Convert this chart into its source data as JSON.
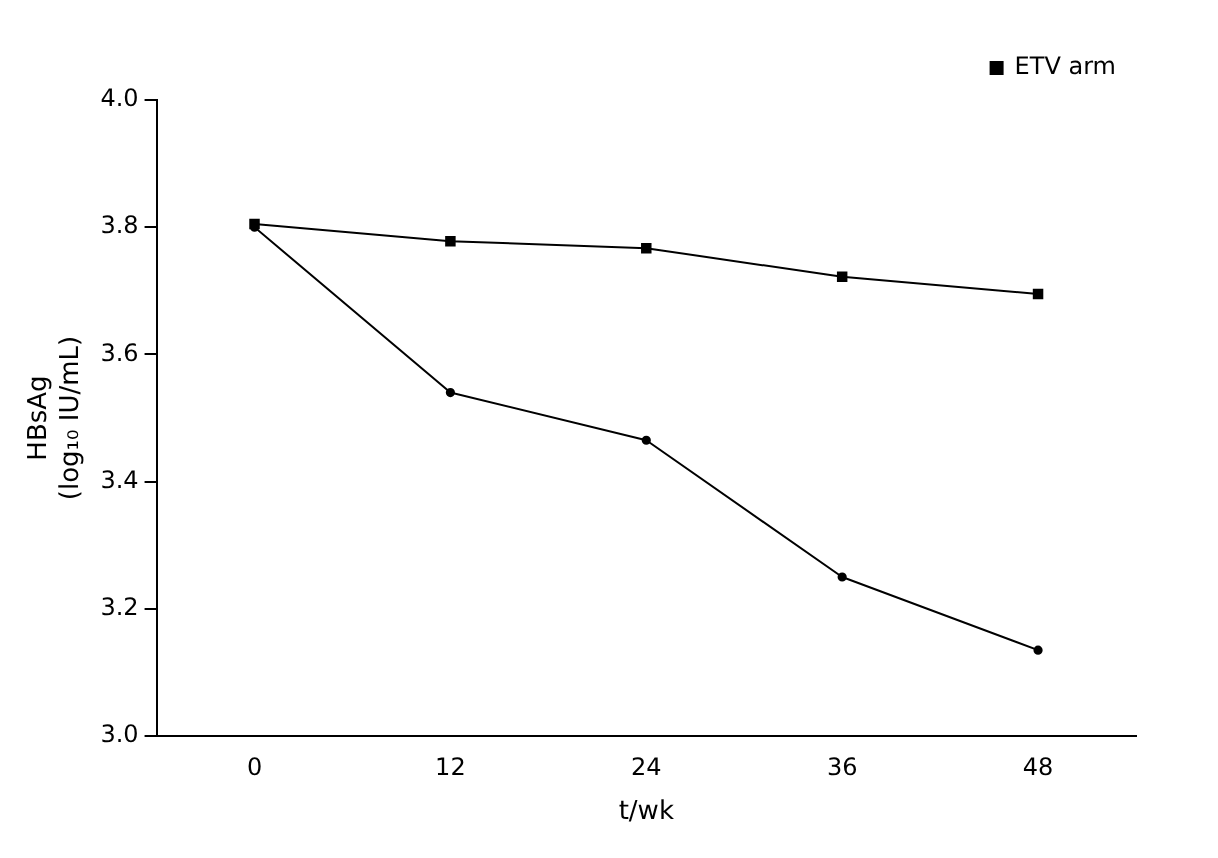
{
  "chart_data": {
    "type": "line",
    "xlabel": "t/wk",
    "ylabel": "HBsAg\n(log₁₀ IU/mL)",
    "categories": [
      "0",
      "12",
      "24",
      "36",
      "48"
    ],
    "series": [
      {
        "name": "ETV arm",
        "color": "#000000",
        "values": [
          3.805,
          3.778,
          3.767,
          3.722,
          3.695
        ],
        "marker": "square"
      },
      {
        "color": "#000000",
        "values": [
          3.8,
          3.54,
          3.465,
          3.25,
          3.135
        ],
        "marker": "circle"
      }
    ],
    "ylim": [
      3.0,
      4.0
    ],
    "yticks": [
      {
        "value": 3.0,
        "label": "3.0"
      },
      {
        "value": 3.2,
        "label": "3.2"
      },
      {
        "value": 3.4,
        "label": "3.4"
      },
      {
        "value": 3.6,
        "label": "3.6"
      },
      {
        "value": 3.8,
        "label": "3.8"
      },
      {
        "value": 4.0,
        "label": "4.0"
      }
    ],
    "grid": false,
    "legend": "top right",
    "line_style": "solid"
  }
}
